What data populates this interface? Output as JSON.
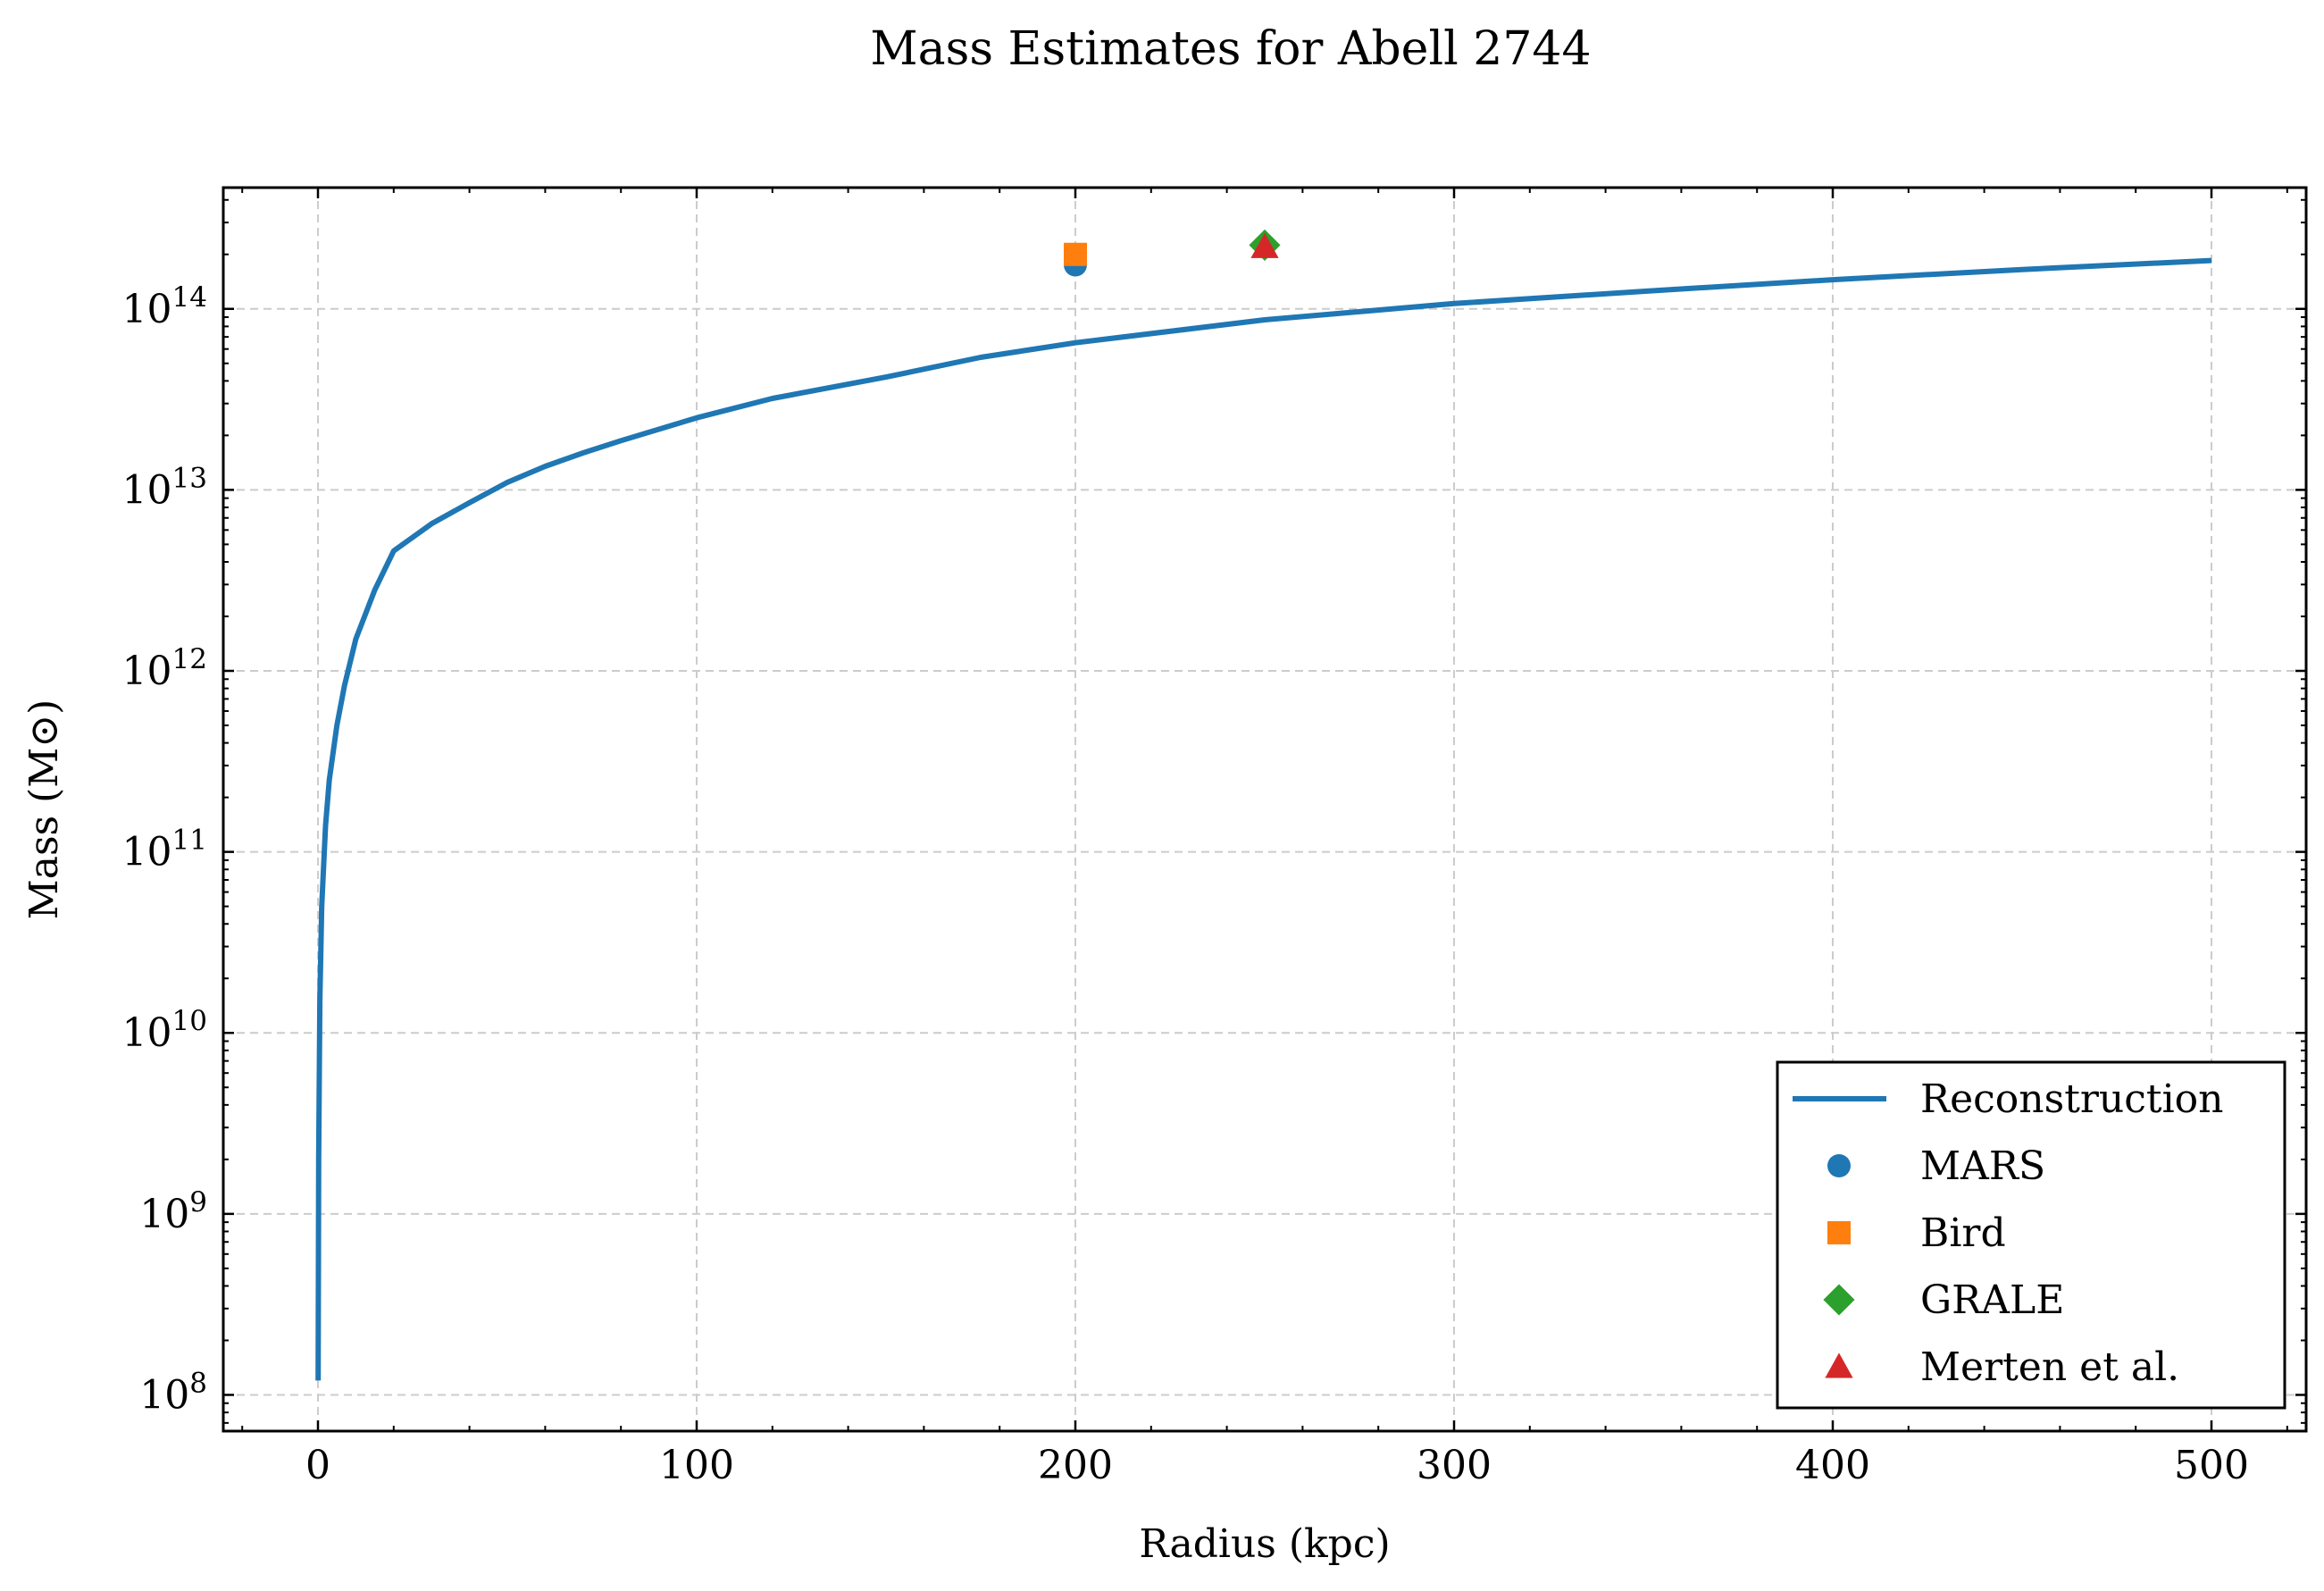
{
  "chart_data": {
    "type": "line",
    "title": "Mass Estimates for Abell 2744",
    "xlabel": "Radius (kpc)",
    "ylabel": "Mass (M⊙)",
    "xlim": [
      -25,
      525
    ],
    "ylim_log10": [
      7.8,
      14.67
    ],
    "y_scale": "log",
    "grid": true,
    "legend_position": "lower-right",
    "x_ticks": [
      0,
      100,
      200,
      300,
      400,
      500
    ],
    "y_tick_exponents": [
      8,
      9,
      10,
      11,
      12,
      13,
      14
    ],
    "series": [
      {
        "name": "Reconstruction",
        "kind": "line",
        "color": "#1f77b4",
        "x": [
          0.05,
          0.2,
          0.5,
          1,
          2,
          3,
          5,
          7,
          10,
          15,
          20,
          30,
          40,
          50,
          60,
          70,
          80,
          100,
          120,
          150,
          175,
          200,
          250,
          300,
          350,
          400,
          450,
          500
        ],
        "y": [
          120000000.0,
          2000000000.0,
          15000000000.0,
          50000000000.0,
          140000000000.0,
          250000000000.0,
          500000000000.0,
          830000000000.0,
          1500000000000.0,
          2800000000000.0,
          4600000000000.0,
          6500000000000.0,
          8500000000000.0,
          11000000000000.0,
          13500000000000.0,
          16000000000000.0,
          18700000000000.0,
          25000000000000.0,
          32000000000000.0,
          42000000000000.0,
          54000000000000.0,
          65000000000000.0,
          87000000000000.0,
          107000000000000.0,
          125000000000000.0,
          145000000000000.0,
          165000000000000.0,
          185000000000000.0
        ]
      },
      {
        "name": "MARS",
        "kind": "scatter",
        "marker": "circle",
        "color": "#1f77b4",
        "x": [
          200
        ],
        "y": [
          175000000000000.0
        ]
      },
      {
        "name": "Bird",
        "kind": "scatter",
        "marker": "square",
        "color": "#ff7f0e",
        "x": [
          200
        ],
        "y": [
          200000000000000.0
        ]
      },
      {
        "name": "GRALE",
        "kind": "scatter",
        "marker": "diamond",
        "color": "#2ca02c",
        "x": [
          250
        ],
        "y": [
          225000000000000.0
        ]
      },
      {
        "name": "Merten et al.",
        "kind": "scatter",
        "marker": "triangle",
        "color": "#d62728",
        "x": [
          250
        ],
        "y": [
          220000000000000.0
        ]
      }
    ]
  }
}
